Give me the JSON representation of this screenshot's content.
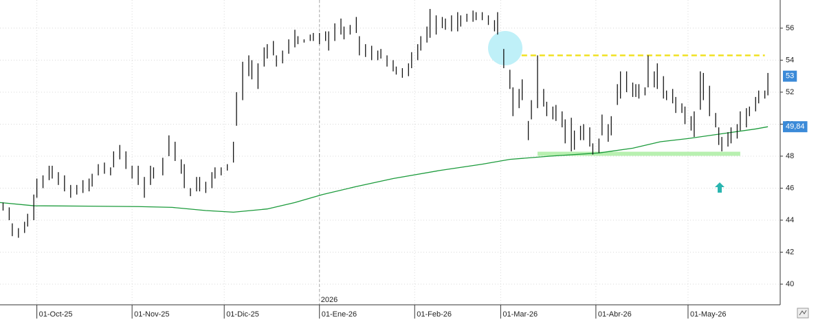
{
  "chart_data": {
    "type": "ohlc",
    "xlim": [
      "2025-09-19",
      "2026-05-31"
    ],
    "ylim": [
      38.71,
      57.76
    ],
    "yticks": [
      40,
      42,
      44,
      46,
      48,
      50,
      52,
      54,
      56
    ],
    "xticks": [
      {
        "value": "2025-10-01",
        "label": "01-Oct-25"
      },
      {
        "value": "2025-11-01",
        "label": "01-Nov-25"
      },
      {
        "value": "2025-12-01",
        "label": "01-Dic-25"
      },
      {
        "value": "2026-01-01",
        "label": "01-Ene-26"
      },
      {
        "value": "2026-02-01",
        "label": "01-Feb-26"
      },
      {
        "value": "2026-03-01",
        "label": "01-Mar-26"
      },
      {
        "value": "2026-04-01",
        "label": "01-Abr-26"
      },
      {
        "value": "2026-05-01",
        "label": "01-May-26"
      }
    ],
    "grid": true,
    "bar_color": "#111111",
    "year_marker": {
      "x": "2026-01-01",
      "label": "2026"
    },
    "last_price": 53,
    "moving_average": {
      "color": "#1a9a3a",
      "x": [
        "2025-09-19",
        "2025-09-30",
        "2025-11-03",
        "2025-11-14",
        "2025-11-25",
        "2025-12-04",
        "2025-12-15",
        "2025-12-24",
        "2026-01-02",
        "2026-01-13",
        "2026-01-25",
        "2026-02-09",
        "2026-02-23",
        "2026-03-04",
        "2026-03-17",
        "2026-04-02",
        "2026-04-13",
        "2026-04-22",
        "2026-05-01",
        "2026-05-12",
        "2026-05-23",
        "2026-05-27"
      ],
      "values": [
        45.1,
        44.9,
        44.85,
        44.8,
        44.6,
        44.5,
        44.7,
        45.1,
        45.6,
        46.1,
        46.6,
        47.1,
        47.5,
        47.8,
        48.0,
        48.2,
        48.5,
        48.9,
        49.1,
        49.4,
        49.7,
        49.84
      ],
      "last_label": {
        "value": 49.84,
        "label": "49,84"
      }
    },
    "resistance": {
      "value": 54.3,
      "from": "2026-03-02",
      "to": "2026-05-26",
      "color": "#f0e020"
    },
    "support": {
      "value": 48.15,
      "from": "2026-03-13",
      "to": "2026-05-18",
      "color": "#b8f0b0"
    },
    "bars": [
      {
        "x": "2025-09-20",
        "high": 45.1,
        "low": 44.6
      },
      {
        "x": "2025-09-22",
        "high": 44.8,
        "low": 44.0
      },
      {
        "x": "2025-09-23",
        "high": 43.8,
        "low": 43.0
      },
      {
        "x": "2025-09-25",
        "high": 43.5,
        "low": 42.9
      },
      {
        "x": "2025-09-27",
        "high": 43.9,
        "low": 43.2
      },
      {
        "x": "2025-09-28",
        "high": 44.4,
        "low": 43.6
      },
      {
        "x": "2025-09-30",
        "high": 45.6,
        "low": 44.0
      },
      {
        "x": "2025-10-01",
        "high": 46.6,
        "low": 45.4
      },
      {
        "x": "2025-10-03",
        "high": 46.8,
        "low": 46.0
      },
      {
        "x": "2025-10-05",
        "high": 47.4,
        "low": 46.5
      },
      {
        "x": "2025-10-06",
        "high": 47.4,
        "low": 46.6
      },
      {
        "x": "2025-10-08",
        "high": 47.0,
        "low": 46.2
      },
      {
        "x": "2025-10-10",
        "high": 46.8,
        "low": 45.8
      },
      {
        "x": "2025-10-12",
        "high": 46.2,
        "low": 45.4
      },
      {
        "x": "2025-10-14",
        "high": 46.2,
        "low": 45.6
      },
      {
        "x": "2025-10-16",
        "high": 46.5,
        "low": 45.7
      },
      {
        "x": "2025-10-18",
        "high": 46.6,
        "low": 45.8
      },
      {
        "x": "2025-10-19",
        "high": 46.9,
        "low": 46.1
      },
      {
        "x": "2025-10-21",
        "high": 47.5,
        "low": 46.8
      },
      {
        "x": "2025-10-23",
        "high": 47.6,
        "low": 46.9
      },
      {
        "x": "2025-10-25",
        "high": 47.3,
        "low": 46.8
      },
      {
        "x": "2025-10-26",
        "high": 48.3,
        "low": 47.3
      },
      {
        "x": "2025-10-28",
        "high": 48.7,
        "low": 47.8
      },
      {
        "x": "2025-10-30",
        "high": 48.3,
        "low": 47.2
      },
      {
        "x": "2025-11-01",
        "high": 47.4,
        "low": 46.6
      },
      {
        "x": "2025-11-03",
        "high": 47.4,
        "low": 46.2
      },
      {
        "x": "2025-11-05",
        "high": 46.7,
        "low": 45.4
      },
      {
        "x": "2025-11-07",
        "high": 47.4,
        "low": 46.2
      },
      {
        "x": "2025-11-08",
        "high": 47.3,
        "low": 46.6
      },
      {
        "x": "2025-11-11",
        "high": 47.9,
        "low": 46.8
      },
      {
        "x": "2025-11-13",
        "high": 49.3,
        "low": 48.0
      },
      {
        "x": "2025-11-15",
        "high": 48.9,
        "low": 47.7
      },
      {
        "x": "2025-11-17",
        "high": 47.8,
        "low": 46.9
      },
      {
        "x": "2025-11-18",
        "high": 47.5,
        "low": 46.0
      },
      {
        "x": "2025-11-20",
        "high": 46.0,
        "low": 45.5
      },
      {
        "x": "2025-11-22",
        "high": 46.7,
        "low": 45.8
      },
      {
        "x": "2025-11-23",
        "high": 46.7,
        "low": 45.8
      },
      {
        "x": "2025-11-25",
        "high": 46.4,
        "low": 45.7
      },
      {
        "x": "2025-11-27",
        "high": 47.0,
        "low": 46.0
      },
      {
        "x": "2025-11-28",
        "high": 47.3,
        "low": 46.6
      },
      {
        "x": "2025-11-30",
        "high": 47.3,
        "low": 46.8
      },
      {
        "x": "2025-12-02",
        "high": 47.5,
        "low": 47.1
      },
      {
        "x": "2025-12-04",
        "high": 48.9,
        "low": 47.6
      },
      {
        "x": "2025-12-05",
        "high": 52.0,
        "low": 49.9
      },
      {
        "x": "2025-12-07",
        "high": 53.9,
        "low": 51.5
      },
      {
        "x": "2025-12-09",
        "high": 54.3,
        "low": 53.0
      },
      {
        "x": "2025-12-10",
        "high": 54.0,
        "low": 52.8
      },
      {
        "x": "2025-12-12",
        "high": 53.8,
        "low": 52.2
      },
      {
        "x": "2025-12-14",
        "high": 54.8,
        "low": 53.6
      },
      {
        "x": "2025-12-15",
        "high": 55.0,
        "low": 54.1
      },
      {
        "x": "2025-12-17",
        "high": 55.2,
        "low": 54.3
      },
      {
        "x": "2025-12-18",
        "high": 54.3,
        "low": 53.6
      },
      {
        "x": "2025-12-20",
        "high": 54.6,
        "low": 53.8
      },
      {
        "x": "2025-12-22",
        "high": 55.3,
        "low": 54.4
      },
      {
        "x": "2025-12-24",
        "high": 55.9,
        "low": 54.8
      },
      {
        "x": "2025-12-25",
        "high": 55.5,
        "low": 55.0
      },
      {
        "x": "2025-12-27",
        "high": 55.3,
        "low": 55.1
      },
      {
        "x": "2025-12-29",
        "high": 55.6,
        "low": 55.2
      },
      {
        "x": "2025-12-30",
        "high": 55.7,
        "low": 55.2
      },
      {
        "x": "2026-01-01",
        "high": 55.7,
        "low": 55.0
      },
      {
        "x": "2026-01-03",
        "high": 55.8,
        "low": 55.2
      },
      {
        "x": "2026-01-04",
        "high": 55.8,
        "low": 54.6
      },
      {
        "x": "2026-01-06",
        "high": 56.3,
        "low": 55.2
      },
      {
        "x": "2026-01-08",
        "high": 56.6,
        "low": 55.6
      },
      {
        "x": "2026-01-09",
        "high": 56.1,
        "low": 55.3
      },
      {
        "x": "2026-01-11",
        "high": 56.2,
        "low": 55.6
      },
      {
        "x": "2026-01-13",
        "high": 56.7,
        "low": 55.7
      },
      {
        "x": "2026-01-14",
        "high": 55.5,
        "low": 54.3
      },
      {
        "x": "2026-01-16",
        "high": 55.0,
        "low": 54.2
      },
      {
        "x": "2026-01-18",
        "high": 54.9,
        "low": 54.0
      },
      {
        "x": "2026-01-20",
        "high": 54.6,
        "low": 54.0
      },
      {
        "x": "2026-01-21",
        "high": 54.7,
        "low": 54.1
      },
      {
        "x": "2026-01-23",
        "high": 54.3,
        "low": 53.6
      },
      {
        "x": "2026-01-25",
        "high": 54.0,
        "low": 53.3
      },
      {
        "x": "2026-01-26",
        "high": 53.6,
        "low": 53.1
      },
      {
        "x": "2026-01-28",
        "high": 53.5,
        "low": 52.9
      },
      {
        "x": "2026-01-30",
        "high": 53.8,
        "low": 53.0
      },
      {
        "x": "2026-01-31",
        "high": 54.5,
        "low": 53.5
      },
      {
        "x": "2026-02-02",
        "high": 55.0,
        "low": 54.0
      },
      {
        "x": "2026-02-03",
        "high": 55.5,
        "low": 54.6
      },
      {
        "x": "2026-02-05",
        "high": 56.1,
        "low": 55.1
      },
      {
        "x": "2026-02-06",
        "high": 57.2,
        "low": 55.4
      },
      {
        "x": "2026-02-08",
        "high": 56.8,
        "low": 55.6
      },
      {
        "x": "2026-02-10",
        "high": 56.7,
        "low": 56.0
      },
      {
        "x": "2026-02-11",
        "high": 56.6,
        "low": 55.9
      },
      {
        "x": "2026-02-13",
        "high": 56.8,
        "low": 55.8
      },
      {
        "x": "2026-02-15",
        "high": 57.0,
        "low": 55.8
      },
      {
        "x": "2026-02-16",
        "high": 56.8,
        "low": 56.1
      },
      {
        "x": "2026-02-18",
        "high": 56.9,
        "low": 56.4
      },
      {
        "x": "2026-02-20",
        "high": 57.1,
        "low": 56.4
      },
      {
        "x": "2026-02-21",
        "high": 57.0,
        "low": 56.5
      },
      {
        "x": "2026-02-23",
        "high": 57.0,
        "low": 56.5
      },
      {
        "x": "2026-02-25",
        "high": 56.8,
        "low": 56.2
      },
      {
        "x": "2026-02-27",
        "high": 56.5,
        "low": 55.8
      },
      {
        "x": "2026-02-28",
        "high": 57.0,
        "low": 55.6
      },
      {
        "x": "2026-03-02",
        "high": 54.7,
        "low": 53.5
      },
      {
        "x": "2026-03-04",
        "high": 53.4,
        "low": 52.2
      },
      {
        "x": "2026-03-05",
        "high": 52.3,
        "low": 50.5
      },
      {
        "x": "2026-03-07",
        "high": 52.2,
        "low": 51.0
      },
      {
        "x": "2026-03-08",
        "high": 52.8,
        "low": 51.5
      },
      {
        "x": "2026-03-10",
        "high": 50.2,
        "low": 49.0
      },
      {
        "x": "2026-03-11",
        "high": 51.5,
        "low": 50.3
      },
      {
        "x": "2026-03-13",
        "high": 54.3,
        "low": 51.0
      },
      {
        "x": "2026-03-15",
        "high": 52.2,
        "low": 51.1
      },
      {
        "x": "2026-03-16",
        "high": 51.4,
        "low": 50.5
      },
      {
        "x": "2026-03-18",
        "high": 51.1,
        "low": 50.3
      },
      {
        "x": "2026-03-19",
        "high": 51.2,
        "low": 50.2
      },
      {
        "x": "2026-03-21",
        "high": 50.8,
        "low": 49.8
      },
      {
        "x": "2026-03-22",
        "high": 50.3,
        "low": 48.8
      },
      {
        "x": "2026-03-24",
        "high": 50.4,
        "low": 48.3
      },
      {
        "x": "2026-03-25",
        "high": 49.6,
        "low": 48.4
      },
      {
        "x": "2026-03-27",
        "high": 49.9,
        "low": 49.0
      },
      {
        "x": "2026-03-28",
        "high": 50.0,
        "low": 49.0
      },
      {
        "x": "2026-03-30",
        "high": 49.8,
        "low": 48.6
      },
      {
        "x": "2026-03-31",
        "high": 48.8,
        "low": 48.1
      },
      {
        "x": "2026-04-02",
        "high": 49.1,
        "low": 48.2
      },
      {
        "x": "2026-04-03",
        "high": 50.6,
        "low": 49.3
      },
      {
        "x": "2026-04-05",
        "high": 50.0,
        "low": 48.9
      },
      {
        "x": "2026-04-06",
        "high": 50.5,
        "low": 49.3
      },
      {
        "x": "2026-04-08",
        "high": 52.5,
        "low": 51.2
      },
      {
        "x": "2026-04-09",
        "high": 53.3,
        "low": 51.6
      },
      {
        "x": "2026-04-11",
        "high": 53.3,
        "low": 52.0
      },
      {
        "x": "2026-04-13",
        "high": 52.6,
        "low": 51.7
      },
      {
        "x": "2026-04-14",
        "high": 52.5,
        "low": 51.7
      },
      {
        "x": "2026-04-15",
        "high": 52.5,
        "low": 51.6
      },
      {
        "x": "2026-04-17",
        "high": 52.3,
        "low": 51.8
      },
      {
        "x": "2026-04-18",
        "high": 54.3,
        "low": 52.3
      },
      {
        "x": "2026-04-20",
        "high": 53.3,
        "low": 52.3
      },
      {
        "x": "2026-04-21",
        "high": 53.8,
        "low": 52.2
      },
      {
        "x": "2026-04-23",
        "high": 53.0,
        "low": 51.6
      },
      {
        "x": "2026-04-24",
        "high": 52.1,
        "low": 51.5
      },
      {
        "x": "2026-04-26",
        "high": 52.2,
        "low": 51.3
      },
      {
        "x": "2026-04-27",
        "high": 51.7,
        "low": 50.7
      },
      {
        "x": "2026-04-29",
        "high": 51.3,
        "low": 50.7
      },
      {
        "x": "2026-04-30",
        "high": 51.1,
        "low": 50.0
      },
      {
        "x": "2026-05-02",
        "high": 50.5,
        "low": 49.6
      },
      {
        "x": "2026-05-03",
        "high": 50.8,
        "low": 49.2
      },
      {
        "x": "2026-05-05",
        "high": 53.3,
        "low": 50.9
      },
      {
        "x": "2026-05-06",
        "high": 53.2,
        "low": 51.5
      },
      {
        "x": "2026-05-08",
        "high": 52.4,
        "low": 50.5
      },
      {
        "x": "2026-05-10",
        "high": 50.7,
        "low": 49.8
      },
      {
        "x": "2026-05-11",
        "high": 49.8,
        "low": 48.7
      },
      {
        "x": "2026-05-12",
        "high": 49.2,
        "low": 48.3
      },
      {
        "x": "2026-05-14",
        "high": 49.5,
        "low": 48.6
      },
      {
        "x": "2026-05-15",
        "high": 49.8,
        "low": 48.8
      },
      {
        "x": "2026-05-17",
        "high": 50.0,
        "low": 49.1
      },
      {
        "x": "2026-05-18",
        "high": 50.8,
        "low": 49.6
      },
      {
        "x": "2026-05-20",
        "high": 51.0,
        "low": 49.8
      },
      {
        "x": "2026-05-21",
        "high": 51.1,
        "low": 50.5
      },
      {
        "x": "2026-05-23",
        "high": 51.7,
        "low": 50.8
      },
      {
        "x": "2026-05-24",
        "high": 52.1,
        "low": 51.3
      },
      {
        "x": "2026-05-26",
        "high": 52.1,
        "low": 51.6
      },
      {
        "x": "2026-05-27",
        "high": 53.2,
        "low": 51.8
      }
    ]
  }
}
